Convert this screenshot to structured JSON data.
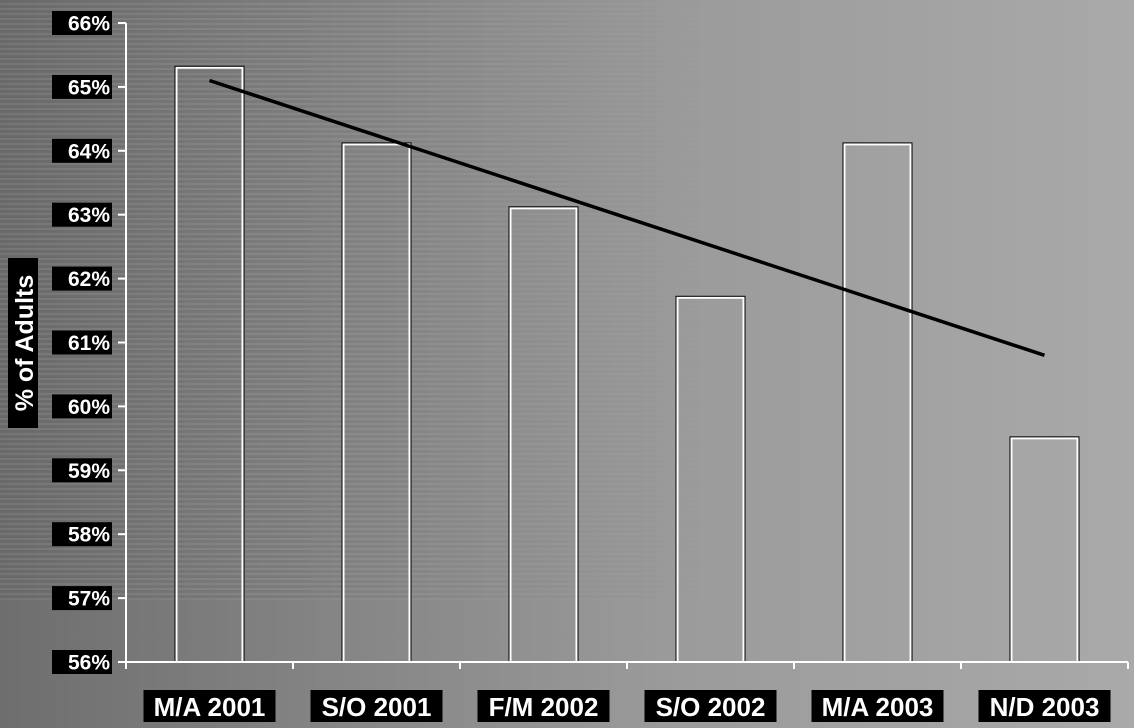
{
  "chart_data": {
    "type": "bar",
    "categories": [
      "M/A 2001",
      "S/O 2001",
      "F/M 2002",
      "S/O 2002",
      "M/A 2003",
      "N/D 2003"
    ],
    "values": [
      65.3,
      64.1,
      63.1,
      61.7,
      64.1,
      59.5
    ],
    "value_unit": "%",
    "title": "",
    "xlabel": "",
    "ylabel": "% of Adults",
    "ylim": [
      56,
      66
    ],
    "yticks": [
      "56%",
      "57%",
      "58%",
      "59%",
      "60%",
      "61%",
      "62%",
      "63%",
      "64%",
      "65%",
      "66%"
    ],
    "trendline": {
      "type": "linear",
      "start": 65.1,
      "end": 60.8
    },
    "grid": false,
    "legend": "none",
    "colors": {
      "bar_fill": "#ffffff",
      "bar_stroke": "#000000",
      "trendline": "#000000",
      "label_background": "#000000",
      "label_text": "#ffffff"
    }
  }
}
